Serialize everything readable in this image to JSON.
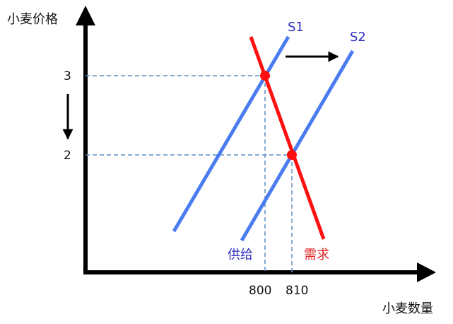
{
  "labels": {
    "y_axis": "小麦价格",
    "x_axis": "小麦数量",
    "supply_curve_1": "S1",
    "supply_curve_2": "S2",
    "supply_text": "供给",
    "demand_text": "需求"
  },
  "ticks": {
    "price_high": "3",
    "price_low": "2",
    "quantity_1": "800",
    "quantity_2": "810"
  },
  "equilibria": [
    {
      "name": "S1-demand",
      "price": 3,
      "quantity": 800
    },
    {
      "name": "S2-demand",
      "price": 2,
      "quantity": 810
    }
  ],
  "shifts": {
    "supply": "right",
    "price": "down"
  },
  "colors": {
    "axis": "#000000",
    "supply": "#4a7cf0",
    "demand": "#ff1010",
    "guide": "#5f8fc0",
    "equilibrium_point": "#ff1010",
    "supply_label": "#2f2fbf",
    "demand_label": "#e02020"
  }
}
